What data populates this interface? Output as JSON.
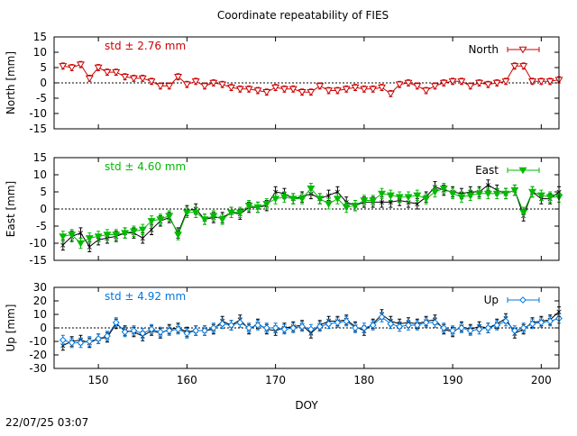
{
  "title": "Coordinate repeatability of FIES",
  "timestamp": "22/07/25 03:07",
  "chart_data": [
    {
      "type": "line",
      "component": "north",
      "ylabel": "North [mm]",
      "xlabel": "",
      "xlim": [
        145,
        202
      ],
      "ylim": [
        -15,
        15
      ],
      "yticks": [
        -15,
        -10,
        -5,
        0,
        5,
        10,
        15
      ],
      "xticks": [
        150,
        160,
        170,
        180,
        190,
        200
      ],
      "show_xtick_labels": false,
      "legend": "North",
      "legend_position": "top-right",
      "std_label": "std ± 2.76 mm",
      "color": "#cc0000",
      "marker": "triangle-down-open",
      "zero_line": true,
      "x": [
        146,
        147,
        148,
        149,
        150,
        151,
        152,
        153,
        154,
        155,
        156,
        157,
        158,
        159,
        160,
        161,
        162,
        163,
        164,
        165,
        166,
        167,
        168,
        169,
        170,
        171,
        172,
        173,
        174,
        175,
        176,
        177,
        178,
        179,
        180,
        181,
        182,
        183,
        184,
        185,
        186,
        187,
        188,
        189,
        190,
        191,
        192,
        193,
        194,
        195,
        196,
        197,
        198,
        199,
        200,
        201,
        202
      ],
      "y": [
        5.5,
        5,
        6,
        1.5,
        5,
        3.5,
        3.5,
        2,
        1.5,
        1.5,
        0.5,
        -1,
        -1,
        2,
        -0.5,
        0.5,
        -1,
        0,
        -0.5,
        -1.5,
        -2,
        -2,
        -2.5,
        -3,
        -1.5,
        -2,
        -2,
        -3,
        -3,
        -1,
        -2.5,
        -2.5,
        -2,
        -1.5,
        -2,
        -2,
        -1.5,
        -3.5,
        -0.5,
        0,
        -1,
        -2.5,
        -1,
        0,
        0.5,
        0.5,
        -1,
        0,
        -0.5,
        0,
        0.5,
        5.5,
        5.5,
        0.5,
        0.5,
        0.5,
        1
      ],
      "err": [
        1,
        1,
        1,
        1,
        1,
        1,
        1,
        1,
        1,
        1,
        1,
        1,
        1,
        1,
        1,
        1,
        1,
        1,
        1,
        1,
        1,
        1,
        1,
        1,
        1,
        1,
        1,
        1,
        1,
        1,
        1,
        1,
        1,
        1,
        1,
        1,
        1,
        1,
        1,
        1,
        1,
        1,
        1,
        1,
        1,
        1,
        1,
        1,
        1,
        1,
        1,
        1,
        1,
        1,
        1,
        1,
        1
      ]
    },
    {
      "type": "line",
      "component": "east",
      "ylabel": "East [mm]",
      "xlabel": "",
      "xlim": [
        145,
        202
      ],
      "ylim": [
        -15,
        15
      ],
      "yticks": [
        -15,
        -10,
        -5,
        0,
        5,
        10,
        15
      ],
      "xticks": [
        150,
        160,
        170,
        180,
        190,
        200
      ],
      "show_xtick_labels": false,
      "legend": "East",
      "legend_position": "top-right",
      "std_label": "std ± 4.60 mm",
      "color": "#00bb00",
      "marker": "triangle-down-filled",
      "zero_line": true,
      "x": [
        146,
        147,
        148,
        149,
        150,
        151,
        152,
        153,
        154,
        155,
        156,
        157,
        158,
        159,
        160,
        161,
        162,
        163,
        164,
        165,
        166,
        167,
        168,
        169,
        170,
        171,
        172,
        173,
        174,
        175,
        176,
        177,
        178,
        179,
        180,
        181,
        182,
        183,
        184,
        185,
        186,
        187,
        188,
        189,
        190,
        191,
        192,
        193,
        194,
        195,
        196,
        197,
        198,
        199,
        200,
        201,
        202
      ],
      "y": [
        -8,
        -7.5,
        -10,
        -8.5,
        -8,
        -7.5,
        -7.5,
        -7,
        -6.5,
        -6,
        -3.5,
        -3,
        -2,
        -7.5,
        -1,
        -1,
        -3,
        -2,
        -3,
        -1,
        -1,
        1,
        0.5,
        1.5,
        3,
        3.5,
        3,
        3,
        6,
        3,
        1.5,
        3,
        0.5,
        1,
        2.5,
        2.5,
        4.5,
        4,
        3.5,
        3.5,
        4,
        3,
        5,
        6,
        4.5,
        3.5,
        4,
        4.5,
        4.5,
        4.5,
        4.5,
        5.5,
        -1,
        5,
        4,
        3.5,
        3.5
      ],
      "err": [
        1.5,
        1.5,
        1.5,
        1.5,
        1.5,
        1.5,
        1.5,
        1.5,
        1.5,
        1.5,
        1.5,
        1.5,
        1.5,
        1.5,
        1.5,
        1.5,
        1.5,
        1.5,
        1.5,
        1.5,
        1.5,
        1.5,
        1.5,
        1.5,
        1.5,
        1.5,
        1.5,
        1.5,
        1.5,
        1.5,
        1.5,
        1.5,
        1.5,
        1.5,
        1.5,
        1.5,
        1.5,
        1.5,
        1.5,
        1.5,
        1.5,
        1.5,
        1.5,
        1.5,
        1.5,
        1.5,
        1.5,
        1.5,
        1.5,
        1.5,
        1.5,
        1.5,
        1.5,
        1.5,
        1.5,
        1.5,
        1.5
      ],
      "reference_y": [
        -10.5,
        -8,
        -7,
        -11,
        -9,
        -8.5,
        -8,
        -7,
        -7,
        -8.5,
        -6,
        -3.5,
        -2.5,
        -7,
        -0.5,
        0,
        -3,
        -2.5,
        -2.5,
        -1,
        -1.5,
        0.5,
        0.5,
        1,
        5,
        4.5,
        3,
        3.5,
        4.5,
        3,
        4,
        5,
        2,
        1,
        2,
        2,
        2,
        2,
        2.5,
        2,
        1.5,
        3.5,
        6.5,
        5.5,
        5,
        4.5,
        5,
        5,
        7,
        5.5,
        4.5,
        5.5,
        -2,
        5,
        3,
        3,
        5
      ]
    },
    {
      "type": "line",
      "component": "up",
      "ylabel": "Up [mm]",
      "xlabel": "DOY",
      "xlim": [
        145,
        202
      ],
      "ylim": [
        -30,
        30
      ],
      "yticks": [
        -30,
        -20,
        -10,
        0,
        10,
        20,
        30
      ],
      "xticks": [
        150,
        160,
        170,
        180,
        190,
        200
      ],
      "show_xtick_labels": true,
      "legend": "Up",
      "legend_position": "top-right",
      "std_label": "std ± 4.92 mm",
      "color": "#0077dd",
      "marker": "diamond-open",
      "zero_line": true,
      "x": [
        146,
        147,
        148,
        149,
        150,
        151,
        152,
        153,
        154,
        155,
        156,
        157,
        158,
        159,
        160,
        161,
        162,
        163,
        164,
        165,
        166,
        167,
        168,
        169,
        170,
        171,
        172,
        173,
        174,
        175,
        176,
        177,
        178,
        179,
        180,
        181,
        182,
        183,
        184,
        185,
        186,
        187,
        188,
        189,
        190,
        191,
        192,
        193,
        194,
        195,
        196,
        197,
        198,
        199,
        200,
        201,
        202
      ],
      "y": [
        -9,
        -11,
        -11,
        -10,
        -8,
        -6,
        4,
        -3,
        -2,
        -4,
        -1,
        -3,
        -2,
        -1,
        -4,
        -2,
        -2,
        0,
        3,
        2,
        4,
        0,
        2,
        0,
        0,
        -1,
        0,
        1,
        -1,
        1,
        3,
        4,
        5,
        0,
        0,
        2,
        8,
        3,
        1,
        2,
        2,
        4,
        4,
        0,
        -2,
        0,
        -2,
        -1,
        0,
        2,
        5,
        -2,
        0,
        3,
        4,
        5,
        7
      ],
      "err": [
        3.5,
        3.5,
        3.5,
        3.5,
        3.5,
        3.5,
        3.5,
        3.5,
        3.5,
        3.5,
        3.5,
        3.5,
        3.5,
        3.5,
        3.5,
        3.5,
        3.5,
        3.5,
        3.5,
        3.5,
        3.5,
        3.5,
        3.5,
        3.5,
        3.5,
        3.5,
        3.5,
        3.5,
        3.5,
        3.5,
        3.5,
        3.5,
        3.5,
        3.5,
        3.5,
        3.5,
        3.5,
        3.5,
        3.5,
        3.5,
        3.5,
        3.5,
        3.5,
        3.5,
        3.5,
        3.5,
        3.5,
        3.5,
        3.5,
        3.5,
        3.5,
        3.5,
        3.5,
        3.5,
        3.5,
        3.5,
        3.5
      ],
      "reference_y": [
        -13,
        -10,
        -9,
        -11,
        -8,
        -7,
        3,
        -2,
        -3,
        -6,
        -2,
        -4,
        -1,
        0,
        -3,
        -2,
        -2,
        -1,
        5,
        2,
        6,
        -1,
        3,
        -1,
        -2,
        0,
        1,
        2,
        -4,
        2,
        5,
        5,
        6,
        1,
        -2,
        3,
        10,
        5,
        3,
        4,
        3,
        5,
        6,
        -1,
        -3,
        1,
        -1,
        1,
        0,
        3,
        7,
        -4,
        -1,
        4,
        5,
        6,
        12
      ]
    }
  ]
}
